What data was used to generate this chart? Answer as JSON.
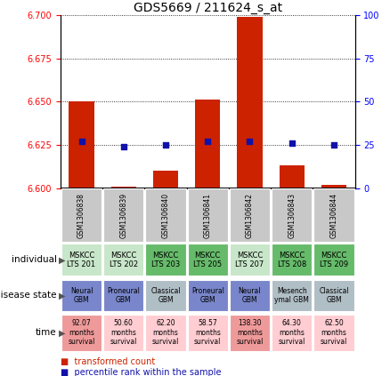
{
  "title": "GDS5669 / 211624_s_at",
  "samples": [
    "GSM1306838",
    "GSM1306839",
    "GSM1306840",
    "GSM1306841",
    "GSM1306842",
    "GSM1306843",
    "GSM1306844"
  ],
  "transformed_count": [
    6.65,
    6.601,
    6.61,
    6.651,
    6.699,
    6.613,
    6.602
  ],
  "percentile_rank": [
    27,
    24,
    25,
    27,
    27,
    26,
    25
  ],
  "ylim_left": [
    6.6,
    6.7
  ],
  "ylim_right": [
    0,
    100
  ],
  "yticks_left": [
    6.6,
    6.625,
    6.65,
    6.675,
    6.7
  ],
  "yticks_right": [
    0,
    25,
    50,
    75,
    100
  ],
  "individual": [
    "MSKCC\nLTS 201",
    "MSKCC\nLTS 202",
    "MSKCC\nLTS 203",
    "MSKCC\nLTS 205",
    "MSKCC\nLTS 207",
    "MSKCC\nLTS 208",
    "MSKCC\nLTS 209"
  ],
  "individual_colors": [
    "#c8e6c9",
    "#c8e6c9",
    "#66bb6a",
    "#66bb6a",
    "#c8e6c9",
    "#66bb6a",
    "#66bb6a"
  ],
  "disease_state": [
    "Neural\nGBM",
    "Proneural\nGBM",
    "Classical\nGBM",
    "Proneural\nGBM",
    "Neural\nGBM",
    "Mesench\nymal GBM",
    "Classical\nGBM"
  ],
  "disease_colors": [
    "#7986CB",
    "#7986CB",
    "#B0BEC5",
    "#7986CB",
    "#7986CB",
    "#B0BEC5",
    "#B0BEC5"
  ],
  "time": [
    "92.07\nmonths\nsurvival",
    "50.60\nmonths\nsurvival",
    "62.20\nmonths\nsurvival",
    "58.57\nmonths\nsurvival",
    "138.30\nmonths\nsurvival",
    "64.30\nmonths\nsurvival",
    "62.50\nmonths\nsurvival"
  ],
  "time_colors": [
    "#EF9A9A",
    "#FFCDD2",
    "#FFCDD2",
    "#FFCDD2",
    "#EF9A9A",
    "#FFCDD2",
    "#FFCDD2"
  ],
  "bar_color": "#CC2200",
  "dot_color": "#1111AA",
  "bar_width": 0.6,
  "background_color": "#ffffff",
  "sample_bg_color": "#C8C8C8",
  "legend_bar_label": "transformed count",
  "legend_dot_label": "percentile rank within the sample",
  "row_label_individual": "individual",
  "row_label_disease": "disease state",
  "row_label_time": "time"
}
